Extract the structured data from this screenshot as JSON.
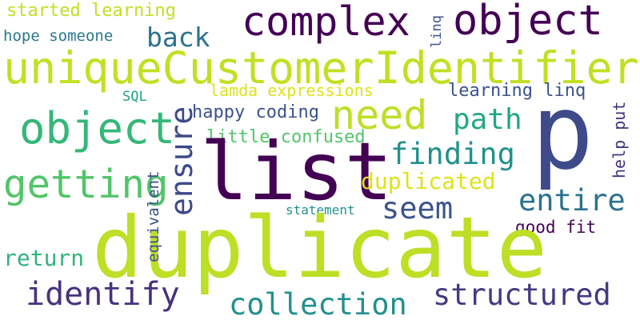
{
  "words": {
    "started_learning": {
      "text": "started learning",
      "color": "#c2df23"
    },
    "hope_someone": {
      "text": "hope someone",
      "color": "#2a788e"
    },
    "complex": {
      "text": "complex",
      "color": "#440154"
    },
    "object_top": {
      "text": "object",
      "color": "#440154"
    },
    "linq": {
      "text": "linq",
      "color": "#3b528b"
    },
    "back": {
      "text": "back",
      "color": "#2c728e"
    },
    "unique_customer_identifier": {
      "text": "uniqueCustomerIdentifier",
      "color": "#c2df23"
    },
    "p": {
      "text": "p",
      "color": "#3e4a89"
    },
    "lamda_expressions": {
      "text": "lamda expressions",
      "color": "#dde318"
    },
    "learning_linq": {
      "text": "learning linq",
      "color": "#3b528b"
    },
    "sql": {
      "text": "SQL",
      "color": "#20a386"
    },
    "ensure": {
      "text": "ensure",
      "color": "#3e4989"
    },
    "need": {
      "text": "need",
      "color": "#bddf26"
    },
    "happy_coding": {
      "text": "happy coding",
      "color": "#3b528b"
    },
    "path": {
      "text": "path",
      "color": "#22a785"
    },
    "object_mid": {
      "text": "object",
      "color": "#35b779"
    },
    "little_confused": {
      "text": "little confused",
      "color": "#52c569"
    },
    "help_put": {
      "text": "help put",
      "color": "#46327e"
    },
    "list": {
      "text": "list",
      "color": "#440154"
    },
    "finding": {
      "text": "finding",
      "color": "#21908d"
    },
    "equivalent": {
      "text": "equivalent",
      "color": "#3b528b"
    },
    "getting": {
      "text": "getting",
      "color": "#52c569"
    },
    "duplicated": {
      "text": "duplicated",
      "color": "#dde318"
    },
    "entire": {
      "text": "entire",
      "color": "#2c728e"
    },
    "seem": {
      "text": "seem",
      "color": "#3b528b"
    },
    "statement": {
      "text": "statement",
      "color": "#21908d"
    },
    "good_fit": {
      "text": "good fit",
      "color": "#440154"
    },
    "duplicate": {
      "text": "duplicate",
      "color": "#bddf26"
    },
    "return": {
      "text": "return",
      "color": "#2fb47c"
    },
    "identify": {
      "text": "identify",
      "color": "#46327e"
    },
    "collection": {
      "text": "collection",
      "color": "#21908d"
    },
    "structured": {
      "text": "structured",
      "color": "#443983"
    }
  }
}
